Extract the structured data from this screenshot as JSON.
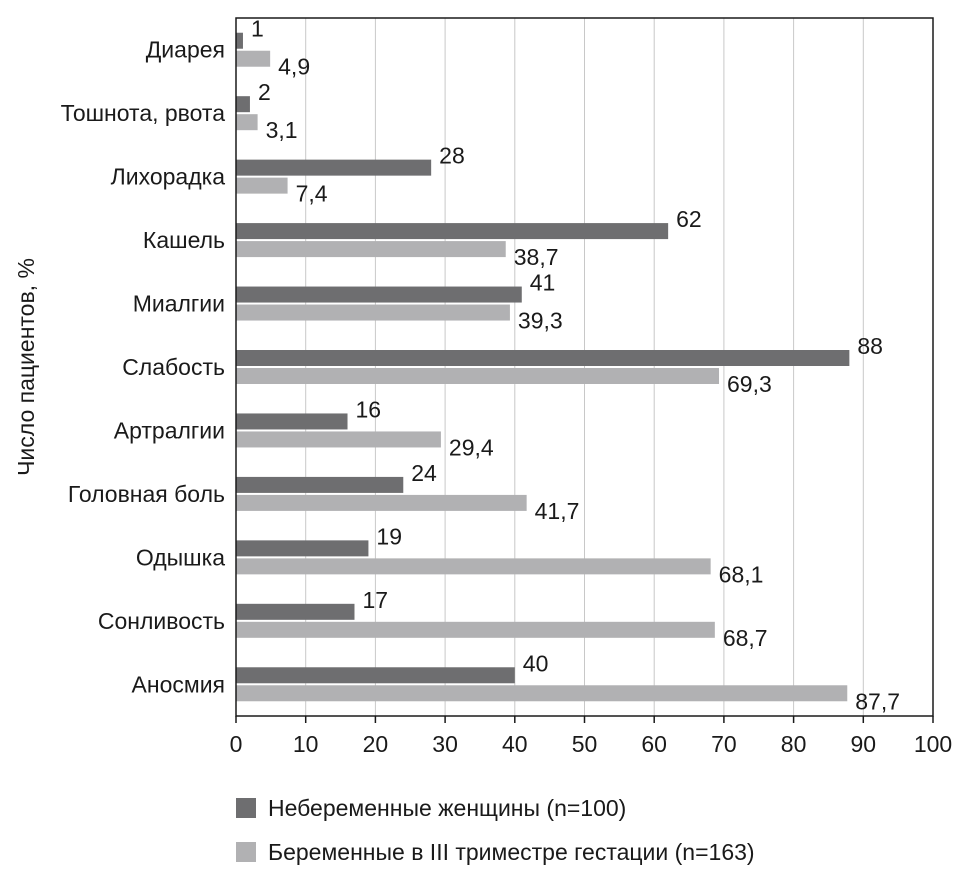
{
  "chart_data": {
    "type": "bar",
    "orientation": "horizontal",
    "ylabel": "Число пациентов, %",
    "xlim": [
      0,
      100
    ],
    "xticks": [
      "0",
      "10",
      "20",
      "30",
      "40",
      "50",
      "60",
      "70",
      "80",
      "90",
      "100"
    ],
    "grid": true,
    "categories": [
      "Диарея",
      "Тошнота, рвота",
      "Лихорадка",
      "Кашель",
      "Миалгии",
      "Слабость",
      "Артралгии",
      "Головная боль",
      "Одышка",
      "Сонливость",
      "Аносмия"
    ],
    "series": [
      {
        "name": "Небеременные женщины (n=100)",
        "color": "#6e6e70",
        "values": [
          1,
          2,
          28,
          62,
          41,
          88,
          16,
          24,
          19,
          17,
          40
        ],
        "labels": [
          "1",
          "2",
          "28",
          "62",
          "41",
          "88",
          "16",
          "24",
          "19",
          "17",
          "40"
        ]
      },
      {
        "name": "Беременные в III триместре гестации (n=163)",
        "color": "#b1b1b3",
        "values": [
          4.9,
          3.1,
          7.4,
          38.7,
          39.3,
          69.3,
          29.4,
          41.7,
          68.1,
          68.7,
          87.7
        ],
        "labels": [
          "4,9",
          "3,1",
          "7,4",
          "38,7",
          "39,3",
          "69,3",
          "29,4",
          "41,7",
          "68,1",
          "68,7",
          "87,7"
        ]
      }
    ],
    "legend_position": "bottom"
  }
}
